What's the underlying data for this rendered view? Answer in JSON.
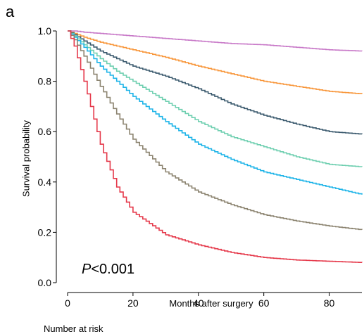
{
  "panel_label": "a",
  "chart_data": {
    "type": "line",
    "subtype": "kaplan-meier",
    "xlabel": "Months after surgery",
    "ylabel": "Survival probability",
    "xlim": [
      0,
      90
    ],
    "ylim": [
      0,
      1.0
    ],
    "x_ticks": [
      0,
      20,
      40,
      60,
      80
    ],
    "y_ticks": [
      0.0,
      0.2,
      0.4,
      0.6,
      0.8,
      1.0
    ],
    "x_tick_labels": [
      "0",
      "20",
      "40",
      "60",
      "80"
    ],
    "y_tick_labels": [
      "0.0",
      "0.2",
      "0.4",
      "0.6",
      "0.8",
      "1.0"
    ],
    "grid": false,
    "annotation": {
      "italic": "P",
      "text": "<0.001"
    },
    "risk_table_title": "Number at risk",
    "x": [
      0,
      2,
      5,
      10,
      15,
      20,
      30,
      40,
      50,
      60,
      70,
      80,
      90
    ],
    "series": [
      {
        "color": "#c879c8",
        "values": [
          1.0,
          1.0,
          0.995,
          0.99,
          0.985,
          0.98,
          0.97,
          0.96,
          0.95,
          0.945,
          0.935,
          0.925,
          0.92
        ]
      },
      {
        "color": "#f8963a",
        "values": [
          1.0,
          0.99,
          0.975,
          0.955,
          0.94,
          0.925,
          0.895,
          0.86,
          0.83,
          0.8,
          0.78,
          0.76,
          0.75
        ]
      },
      {
        "color": "#3b5a6e",
        "values": [
          1.0,
          0.985,
          0.96,
          0.92,
          0.89,
          0.86,
          0.82,
          0.77,
          0.71,
          0.665,
          0.63,
          0.6,
          0.59
        ]
      },
      {
        "color": "#6fcfb0",
        "values": [
          1.0,
          0.98,
          0.945,
          0.89,
          0.84,
          0.8,
          0.72,
          0.64,
          0.58,
          0.54,
          0.5,
          0.47,
          0.46
        ]
      },
      {
        "color": "#1eb4e8",
        "values": [
          1.0,
          0.975,
          0.935,
          0.86,
          0.8,
          0.74,
          0.64,
          0.55,
          0.49,
          0.44,
          0.41,
          0.38,
          0.35
        ]
      },
      {
        "color": "#8c8470",
        "values": [
          1.0,
          0.965,
          0.9,
          0.78,
          0.67,
          0.57,
          0.44,
          0.36,
          0.31,
          0.27,
          0.245,
          0.225,
          0.21
        ]
      },
      {
        "color": "#e5384a",
        "values": [
          1.0,
          0.94,
          0.8,
          0.55,
          0.38,
          0.28,
          0.19,
          0.15,
          0.12,
          0.1,
          0.09,
          0.085,
          0.08
        ]
      }
    ]
  }
}
